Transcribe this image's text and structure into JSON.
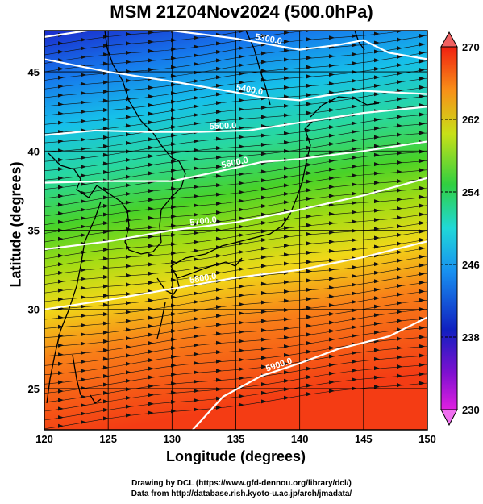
{
  "title": "MSM 21Z04Nov2024 (500.0hPa)",
  "x_label": "Longitude (degrees)",
  "y_label": "Latitude  (degrees)",
  "x_ticks": [
    "120",
    "125",
    "130",
    "135",
    "140",
    "145",
    "150"
  ],
  "y_ticks": [
    "25",
    "30",
    "35",
    "40",
    "45"
  ],
  "x_range": [
    120,
    150
  ],
  "y_range": [
    22.4,
    47.6
  ],
  "colorbar": {
    "ticks": [
      "230",
      "238",
      "246",
      "254",
      "262",
      "270"
    ],
    "range": [
      230,
      270
    ]
  },
  "contours": [
    {
      "label": "5300.0",
      "points": [
        [
          120,
          47.2
        ],
        [
          125,
          47.8
        ],
        [
          130,
          47.6
        ],
        [
          135,
          47.1
        ],
        [
          140,
          46.4
        ],
        [
          143,
          46.7
        ],
        [
          145,
          47.0
        ],
        [
          147,
          46.2
        ],
        [
          150,
          45.8
        ]
      ]
    },
    {
      "label": "5400.0",
      "points": [
        [
          120,
          45.8
        ],
        [
          125,
          45.0
        ],
        [
          130,
          44.4
        ],
        [
          135,
          43.7
        ],
        [
          137,
          43.4
        ],
        [
          140,
          43.2
        ],
        [
          142,
          43.5
        ],
        [
          145,
          43.8
        ],
        [
          150,
          43.6
        ]
      ]
    },
    {
      "label": "5500.0",
      "points": [
        [
          120,
          41.0
        ],
        [
          124,
          41.3
        ],
        [
          128,
          41.2
        ],
        [
          132,
          41.2
        ],
        [
          136,
          41.3
        ],
        [
          140,
          41.8
        ],
        [
          145,
          42.4
        ],
        [
          150,
          42.8
        ]
      ]
    },
    {
      "label": "5600.0",
      "points": [
        [
          120,
          38.0
        ],
        [
          125,
          38.1
        ],
        [
          130,
          38.1
        ],
        [
          133,
          38.6
        ],
        [
          137,
          39.3
        ],
        [
          140,
          39.5
        ],
        [
          145,
          40.0
        ],
        [
          150,
          40.6
        ]
      ]
    },
    {
      "label": "5700.0",
      "points": [
        [
          120,
          33.8
        ],
        [
          125,
          34.3
        ],
        [
          130,
          35.0
        ],
        [
          135,
          35.5
        ],
        [
          140,
          36.3
        ],
        [
          145,
          37.2
        ],
        [
          150,
          38.3
        ]
      ]
    },
    {
      "label": "5800.0",
      "points": [
        [
          120,
          30.0
        ],
        [
          125,
          30.6
        ],
        [
          130,
          31.3
        ],
        [
          135,
          32.0
        ],
        [
          140,
          32.5
        ],
        [
          145,
          33.3
        ],
        [
          150,
          34.3
        ]
      ]
    },
    {
      "label": "5900.0",
      "points": [
        [
          131.5,
          22.3
        ],
        [
          134,
          24.5
        ],
        [
          137,
          25.8
        ],
        [
          140,
          26.6
        ],
        [
          143,
          27.5
        ],
        [
          147,
          28.3
        ],
        [
          150,
          29.5
        ]
      ]
    }
  ],
  "colors": {
    "cold": "#0000cc",
    "warm": "#ff3300",
    "contour": "#ffffff",
    "coastline": "#000000"
  }
}
